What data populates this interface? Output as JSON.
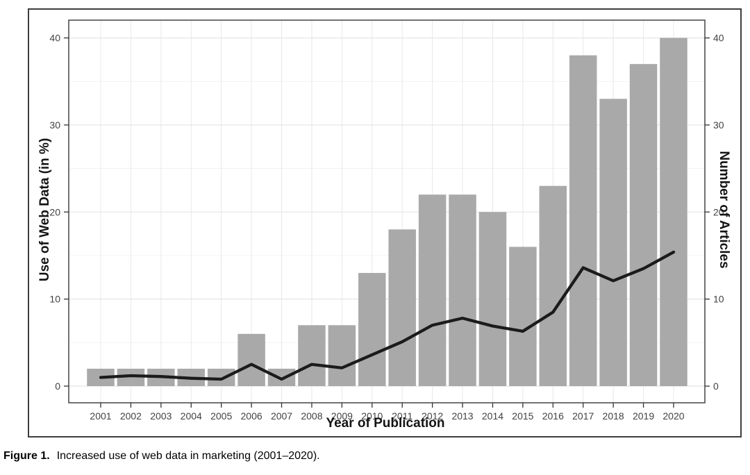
{
  "figure": {
    "caption_prefix": "Figure 1.",
    "caption_text": "Increased use of web data in marketing (2001–2020)."
  },
  "chart_data": {
    "type": "bar+line",
    "categories": [
      "2001",
      "2002",
      "2003",
      "2004",
      "2005",
      "2006",
      "2007",
      "2008",
      "2009",
      "2010",
      "2011",
      "2012",
      "2013",
      "2014",
      "2015",
      "2016",
      "2017",
      "2018",
      "2019",
      "2020"
    ],
    "series": [
      {
        "name": "Number of Articles",
        "type": "bar",
        "axis": "right",
        "values": [
          2,
          2,
          2,
          2,
          2,
          6,
          2,
          7,
          7,
          13,
          18,
          22,
          22,
          20,
          16,
          23,
          38,
          33,
          37,
          40
        ]
      },
      {
        "name": "Use of Web Data (in %)",
        "type": "line",
        "axis": "left",
        "values": [
          1.0,
          1.2,
          1.1,
          0.9,
          0.8,
          2.5,
          0.8,
          2.5,
          2.1,
          3.6,
          5.1,
          7.0,
          7.8,
          6.9,
          6.3,
          8.5,
          13.6,
          12.1,
          13.5,
          15.4
        ]
      }
    ],
    "x_axis": {
      "label": "Year of Publication"
    },
    "left_axis": {
      "label": "Use of Web Data (in %)",
      "ticks": [
        0,
        10,
        20,
        30,
        40
      ],
      "minor_ticks": [
        5,
        15,
        25,
        35
      ],
      "range": [
        0,
        42
      ]
    },
    "right_axis": {
      "label": "Number of Articles",
      "ticks": [
        0,
        10,
        20,
        30,
        40
      ],
      "range": [
        0,
        42
      ]
    },
    "grid": true,
    "legend": "none",
    "colors": {
      "bar": "#a9a9a9",
      "line": "#1b1b1b",
      "grid_major": "#e4e4e4",
      "grid_minor": "#f1f1f1",
      "grid_vertical": "#e8e8e8",
      "panel_border": "#4f4f4f",
      "tick_mark": "#333333",
      "tick_text": "#424242",
      "outer_border": "#3d3d3d"
    }
  }
}
